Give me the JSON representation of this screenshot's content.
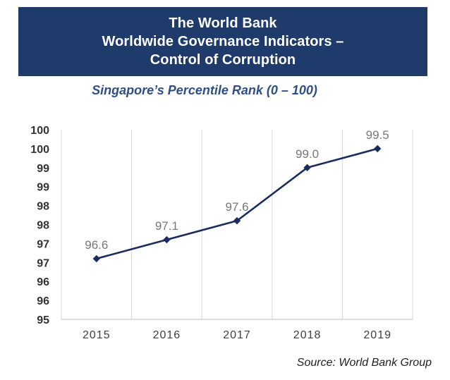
{
  "header": {
    "title_lines": [
      "The World Bank",
      "Worldwide Governance Indicators –",
      "Control of Corruption"
    ],
    "subtitle": "Singapore’s Percentile Rank (0 –  100)"
  },
  "footer": {
    "source": "Source: World Bank Group"
  },
  "colors": {
    "banner_background": "#1f3b6b",
    "subtitle": "#2e4f86",
    "line": "#1b2d5e",
    "data_label": "#777777",
    "axis_text": "#404040",
    "grid": "#d9d9d9"
  },
  "chart_data": {
    "type": "line",
    "categories": [
      "2015",
      "2016",
      "2017",
      "2018",
      "2019"
    ],
    "series": [
      {
        "values": [
          96.6,
          97.1,
          97.6,
          99.0,
          99.5
        ],
        "data_labels": [
          "96.6",
          "97.1",
          "97.6",
          "99.0",
          "99.5"
        ],
        "marker": "diamond"
      }
    ],
    "ylim": [
      95,
      100
    ],
    "yticks": [
      95,
      95.5,
      96,
      96.5,
      97,
      97.5,
      98,
      98.5,
      99,
      99.5,
      100
    ],
    "ytick_labels": [
      "95",
      "96",
      "96",
      "97",
      "97",
      "98",
      "98",
      "99",
      "99",
      "100",
      "100"
    ],
    "grid": "vertical category gridlines",
    "legend": "none"
  }
}
